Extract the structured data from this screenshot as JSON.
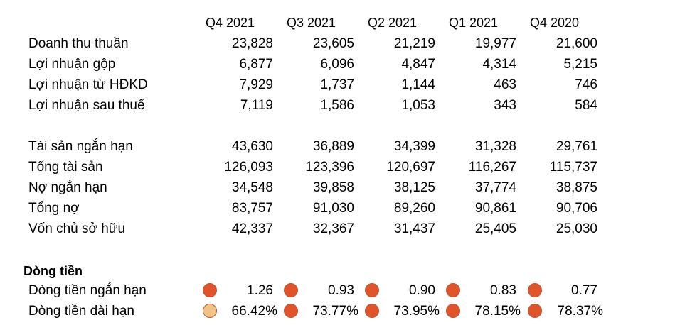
{
  "headers": [
    "Q4 2021",
    "Q3 2021",
    "Q2 2021",
    "Q1 2021",
    "Q4 2020"
  ],
  "income_rows": [
    {
      "label": "Doanh thu thuần",
      "values": [
        "23,828",
        "23,605",
        "21,219",
        "19,977",
        "21,600"
      ]
    },
    {
      "label": "Lợi nhuận gộp",
      "values": [
        "6,877",
        "6,096",
        "4,847",
        "4,314",
        "5,215"
      ]
    },
    {
      "label": "Lợi nhuận từ HĐKD",
      "values": [
        "7,929",
        "1,737",
        "1,144",
        "463",
        "746"
      ]
    },
    {
      "label": "Lợi nhuận sau thuế",
      "values": [
        "7,119",
        "1,586",
        "1,053",
        "343",
        "584"
      ]
    }
  ],
  "balance_rows": [
    {
      "label": "Tài sản ngắn hạn",
      "values": [
        "43,630",
        "36,889",
        "34,399",
        "31,328",
        "29,761"
      ]
    },
    {
      "label": "Tổng tài sản",
      "values": [
        "126,093",
        "123,396",
        "120,697",
        "116,267",
        "115,737"
      ]
    },
    {
      "label": "Nợ ngắn hạn",
      "values": [
        "34,548",
        "39,858",
        "38,125",
        "37,774",
        "38,875"
      ]
    },
    {
      "label": "Tổng nợ",
      "values": [
        "83,757",
        "91,030",
        "89,260",
        "90,861",
        "90,706"
      ]
    },
    {
      "label": "Vốn chủ sở hữu",
      "values": [
        "42,337",
        "32,367",
        "31,437",
        "25,405",
        "25,030"
      ]
    }
  ],
  "cashflow": {
    "title": "Dòng tiền",
    "rows": [
      {
        "label": "Dòng tiền ngắn hạn",
        "values": [
          "1.26",
          "0.93",
          "0.90",
          "0.83",
          "0.77"
        ],
        "indicator_colors": [
          "#E0542C",
          "#E0542C",
          "#E0542C",
          "#E0542C",
          "#E0542C"
        ]
      },
      {
        "label": "Dòng tiền dài hạn",
        "values": [
          "66.42%",
          "73.77%",
          "73.95%",
          "78.15%",
          "78.37%"
        ],
        "indicator_colors": [
          "#F0C284",
          "#E0542C",
          "#E0542C",
          "#E0542C",
          "#E0542C"
        ]
      }
    ]
  },
  "colors": {
    "indicator_red": "#E0542C",
    "indicator_light": "#F0C284",
    "indicator_border": "#B85A3A"
  }
}
